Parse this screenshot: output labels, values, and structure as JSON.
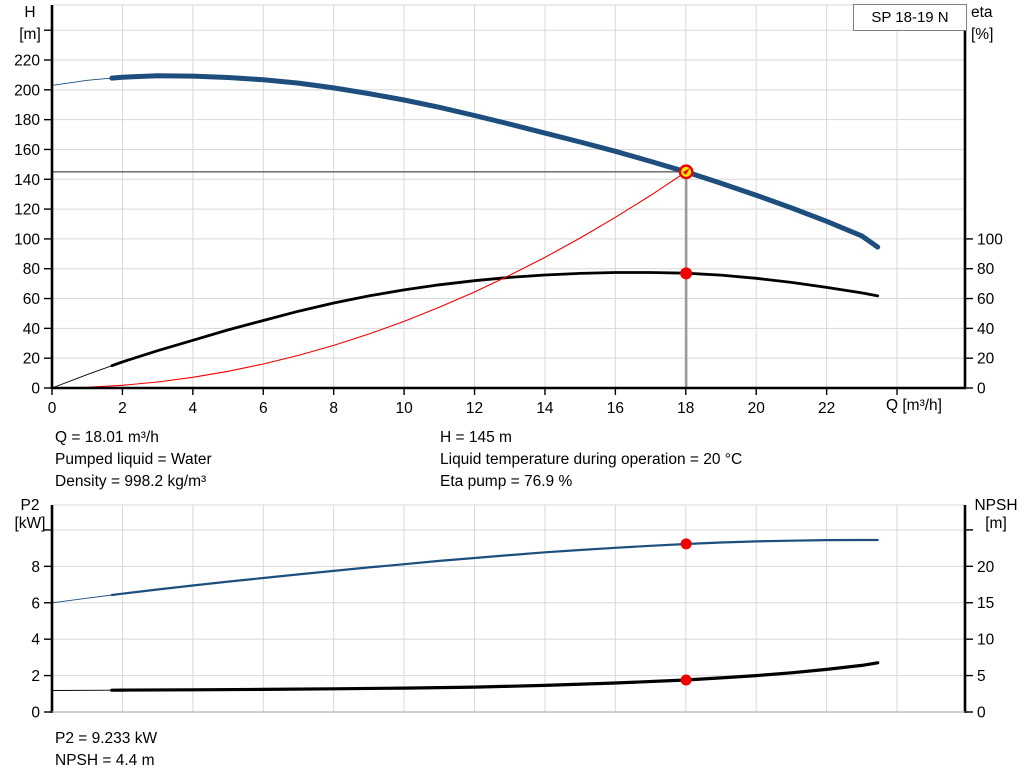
{
  "colors": {
    "blue": "#1d4e7d",
    "black": "#000000",
    "red": "#f20000",
    "grid": "#d8d8d8",
    "axis": "#000000",
    "light_axis": "#b3b3b3",
    "guide_vertical": "#9b9b9b",
    "guide_horizontal": "#5f5f5f",
    "duty_fill": "#ffe600",
    "duty_ring": "#ee0000",
    "box_border": "#7f7f7f"
  },
  "annotations": {
    "row1_left": "Q = 18.01 m³/h",
    "row2_left": "Pumped liquid = Water",
    "row3_left": "Density = 998.2 kg/m³",
    "row1_right": "H = 145 m",
    "row2_right": "Liquid temperature during operation = 20 °C",
    "row3_right": "Eta pump = 76.9 %",
    "bottom1": "P2 = 9.233 kW",
    "bottom2": "NPSH = 4.4 m"
  },
  "chart_data": [
    {
      "type": "line",
      "title": "SP 18-19 N",
      "x_axis": {
        "label": "Q [m³/h]",
        "min": 0,
        "max": 25.93,
        "gridlines": [
          2,
          4,
          6,
          8,
          10,
          12,
          14,
          16,
          18,
          20,
          22,
          24
        ],
        "ticks": [
          [
            0,
            "0"
          ],
          [
            2,
            "2"
          ],
          [
            4,
            "4"
          ],
          [
            6,
            "6"
          ],
          [
            8,
            "8"
          ],
          [
            10,
            "10"
          ],
          [
            12,
            "12"
          ],
          [
            14,
            "14"
          ],
          [
            16,
            "16"
          ],
          [
            18,
            "18"
          ],
          [
            20,
            "20"
          ],
          [
            22,
            "22"
          ],
          [
            24,
            ""
          ]
        ]
      },
      "y_left": {
        "name": "H",
        "unit": "[m]",
        "min": 0,
        "max": 256.9,
        "gridlines": [
          20,
          40,
          60,
          80,
          100,
          120,
          140,
          160,
          180,
          200,
          220,
          240
        ],
        "ticks": [
          [
            0,
            "0"
          ],
          [
            20,
            "20"
          ],
          [
            40,
            "40"
          ],
          [
            60,
            "60"
          ],
          [
            80,
            "80"
          ],
          [
            100,
            "100"
          ],
          [
            120,
            "120"
          ],
          [
            140,
            "140"
          ],
          [
            160,
            "160"
          ],
          [
            180,
            "180"
          ],
          [
            200,
            "200"
          ],
          [
            220,
            "220"
          ],
          [
            240,
            ""
          ]
        ]
      },
      "y_right": {
        "name": "eta",
        "unit": "[%]",
        "min": 0,
        "max": 256.9,
        "ticks": [
          [
            0,
            "0"
          ],
          [
            20,
            "20"
          ],
          [
            40,
            "40"
          ],
          [
            60,
            "60"
          ],
          [
            80,
            "80"
          ],
          [
            100,
            "100"
          ]
        ]
      },
      "guides": {
        "q": 18.01,
        "h": 145
      },
      "series": [
        {
          "name": "eta-curve",
          "color": "black",
          "width": 2.8,
          "thin_until": 1.7,
          "axis": "right",
          "points": [
            [
              0,
              0
            ],
            [
              1,
              9
            ],
            [
              2,
              17.5
            ],
            [
              3,
              25
            ],
            [
              4,
              32
            ],
            [
              5,
              39
            ],
            [
              6,
              45.3
            ],
            [
              7,
              51.5
            ],
            [
              8,
              57
            ],
            [
              9,
              61.8
            ],
            [
              10,
              65.8
            ],
            [
              11,
              69.2
            ],
            [
              12,
              72
            ],
            [
              13,
              74.2
            ],
            [
              14,
              75.8
            ],
            [
              15,
              76.9
            ],
            [
              16,
              77.5
            ],
            [
              17,
              77.5
            ],
            [
              18,
              77
            ],
            [
              19,
              75.7
            ],
            [
              20,
              73.6
            ],
            [
              21,
              70.8
            ],
            [
              22,
              67.5
            ],
            [
              23,
              63.8
            ],
            [
              23.45,
              61.8
            ]
          ]
        },
        {
          "name": "system-curve",
          "color": "red",
          "width": 1.1,
          "thin_until": null,
          "axis": "left",
          "points": [
            [
              0,
              0
            ],
            [
              1,
              0.45
            ],
            [
              2,
              1.8
            ],
            [
              3,
              4.0
            ],
            [
              4,
              7.2
            ],
            [
              5,
              11.2
            ],
            [
              6,
              16.1
            ],
            [
              7,
              21.9
            ],
            [
              8,
              28.6
            ],
            [
              9,
              36.2
            ],
            [
              10,
              44.7
            ],
            [
              11,
              54.1
            ],
            [
              12,
              64.4
            ],
            [
              13,
              75.6
            ],
            [
              14,
              87.6
            ],
            [
              15,
              100.6
            ],
            [
              16,
              114.5
            ],
            [
              17,
              129.2
            ],
            [
              18.01,
              145
            ]
          ]
        },
        {
          "name": "head-curve",
          "color": "blue",
          "width": 5,
          "thin_until": 1.7,
          "axis": "left",
          "points": [
            [
              0,
              203
            ],
            [
              1,
              206.4
            ],
            [
              2,
              208.5
            ],
            [
              3,
              209.5
            ],
            [
              4,
              209.2
            ],
            [
              5,
              208.3
            ],
            [
              6,
              206.7
            ],
            [
              7,
              204.5
            ],
            [
              8,
              201.3
            ],
            [
              9,
              197.5
            ],
            [
              10,
              193.2
            ],
            [
              11,
              188.3
            ],
            [
              12,
              182.8
            ],
            [
              13,
              177
            ],
            [
              14,
              171
            ],
            [
              15,
              165
            ],
            [
              16,
              158.8
            ],
            [
              17,
              152
            ],
            [
              18,
              145
            ],
            [
              19,
              137.4
            ],
            [
              20,
              129.3
            ],
            [
              21,
              120.8
            ],
            [
              22,
              111.8
            ],
            [
              23,
              102
            ],
            [
              23.45,
              94.5
            ]
          ]
        }
      ],
      "markers": [
        {
          "name": "eta-duty-dot",
          "shape": "dot",
          "q": 18.01,
          "value": 76.9,
          "axis": "right",
          "r": 6
        },
        {
          "name": "duty-point",
          "shape": "ring",
          "q": 18.01,
          "value": 145,
          "axis": "left",
          "r": 6.2
        }
      ]
    },
    {
      "type": "line",
      "title": "",
      "x_axis": {
        "label": "",
        "min": 0,
        "max": 25.93,
        "gridlines": [
          2,
          4,
          6,
          8,
          10,
          12,
          14,
          16,
          18,
          20,
          22,
          24
        ],
        "ticks": []
      },
      "y_left": {
        "name": "P2",
        "unit": "[kW]",
        "min": 0,
        "max": 11.37,
        "gridlines": [
          2,
          4,
          6,
          8,
          10
        ],
        "ticks": [
          [
            0,
            "0"
          ],
          [
            2,
            "2"
          ],
          [
            4,
            "4"
          ],
          [
            6,
            "6"
          ],
          [
            8,
            "8"
          ],
          [
            10,
            ""
          ]
        ]
      },
      "y_right": {
        "name": "NPSH",
        "unit": "[m]",
        "min": 0,
        "max": 28.42,
        "ticks": [
          [
            0,
            "0"
          ],
          [
            5,
            "5"
          ],
          [
            10,
            "10"
          ],
          [
            15,
            "15"
          ],
          [
            20,
            "20"
          ],
          [
            25,
            ""
          ]
        ]
      },
      "guides": null,
      "series": [
        {
          "name": "npsh-curve",
          "color": "black",
          "width": 3.2,
          "thin_until": 1.7,
          "axis": "right",
          "points": [
            [
              0,
              2.95
            ],
            [
              2,
              3.0
            ],
            [
              4,
              3.05
            ],
            [
              6,
              3.1
            ],
            [
              8,
              3.18
            ],
            [
              10,
              3.28
            ],
            [
              12,
              3.42
            ],
            [
              14,
              3.65
            ],
            [
              16,
              3.98
            ],
            [
              18,
              4.4
            ],
            [
              19,
              4.68
            ],
            [
              20,
              5.0
            ],
            [
              21,
              5.38
            ],
            [
              22,
              5.85
            ],
            [
              23,
              6.4
            ],
            [
              23.45,
              6.75
            ]
          ]
        },
        {
          "name": "p2-curve",
          "color": "blue",
          "width": 2.2,
          "thin_until": 1.7,
          "axis": "left",
          "points": [
            [
              0,
              6.0
            ],
            [
              1,
              6.25
            ],
            [
              2,
              6.5
            ],
            [
              3,
              6.73
            ],
            [
              4,
              6.95
            ],
            [
              5,
              7.16
            ],
            [
              6,
              7.36
            ],
            [
              7,
              7.56
            ],
            [
              8,
              7.75
            ],
            [
              9,
              7.94
            ],
            [
              10,
              8.12
            ],
            [
              11,
              8.3
            ],
            [
              12,
              8.46
            ],
            [
              13,
              8.62
            ],
            [
              14,
              8.77
            ],
            [
              15,
              8.9
            ],
            [
              16,
              9.02
            ],
            [
              17,
              9.13
            ],
            [
              18,
              9.23
            ],
            [
              19,
              9.31
            ],
            [
              20,
              9.37
            ],
            [
              21,
              9.41
            ],
            [
              22,
              9.44
            ],
            [
              23,
              9.45
            ],
            [
              23.45,
              9.45
            ]
          ]
        }
      ],
      "markers": [
        {
          "name": "p2-duty-dot",
          "shape": "dot",
          "q": 18.01,
          "value": 9.233,
          "axis": "left",
          "r": 5.5
        },
        {
          "name": "npsh-duty-dot",
          "shape": "dot",
          "q": 18.01,
          "value": 4.4,
          "axis": "right",
          "r": 5.5
        }
      ]
    }
  ]
}
